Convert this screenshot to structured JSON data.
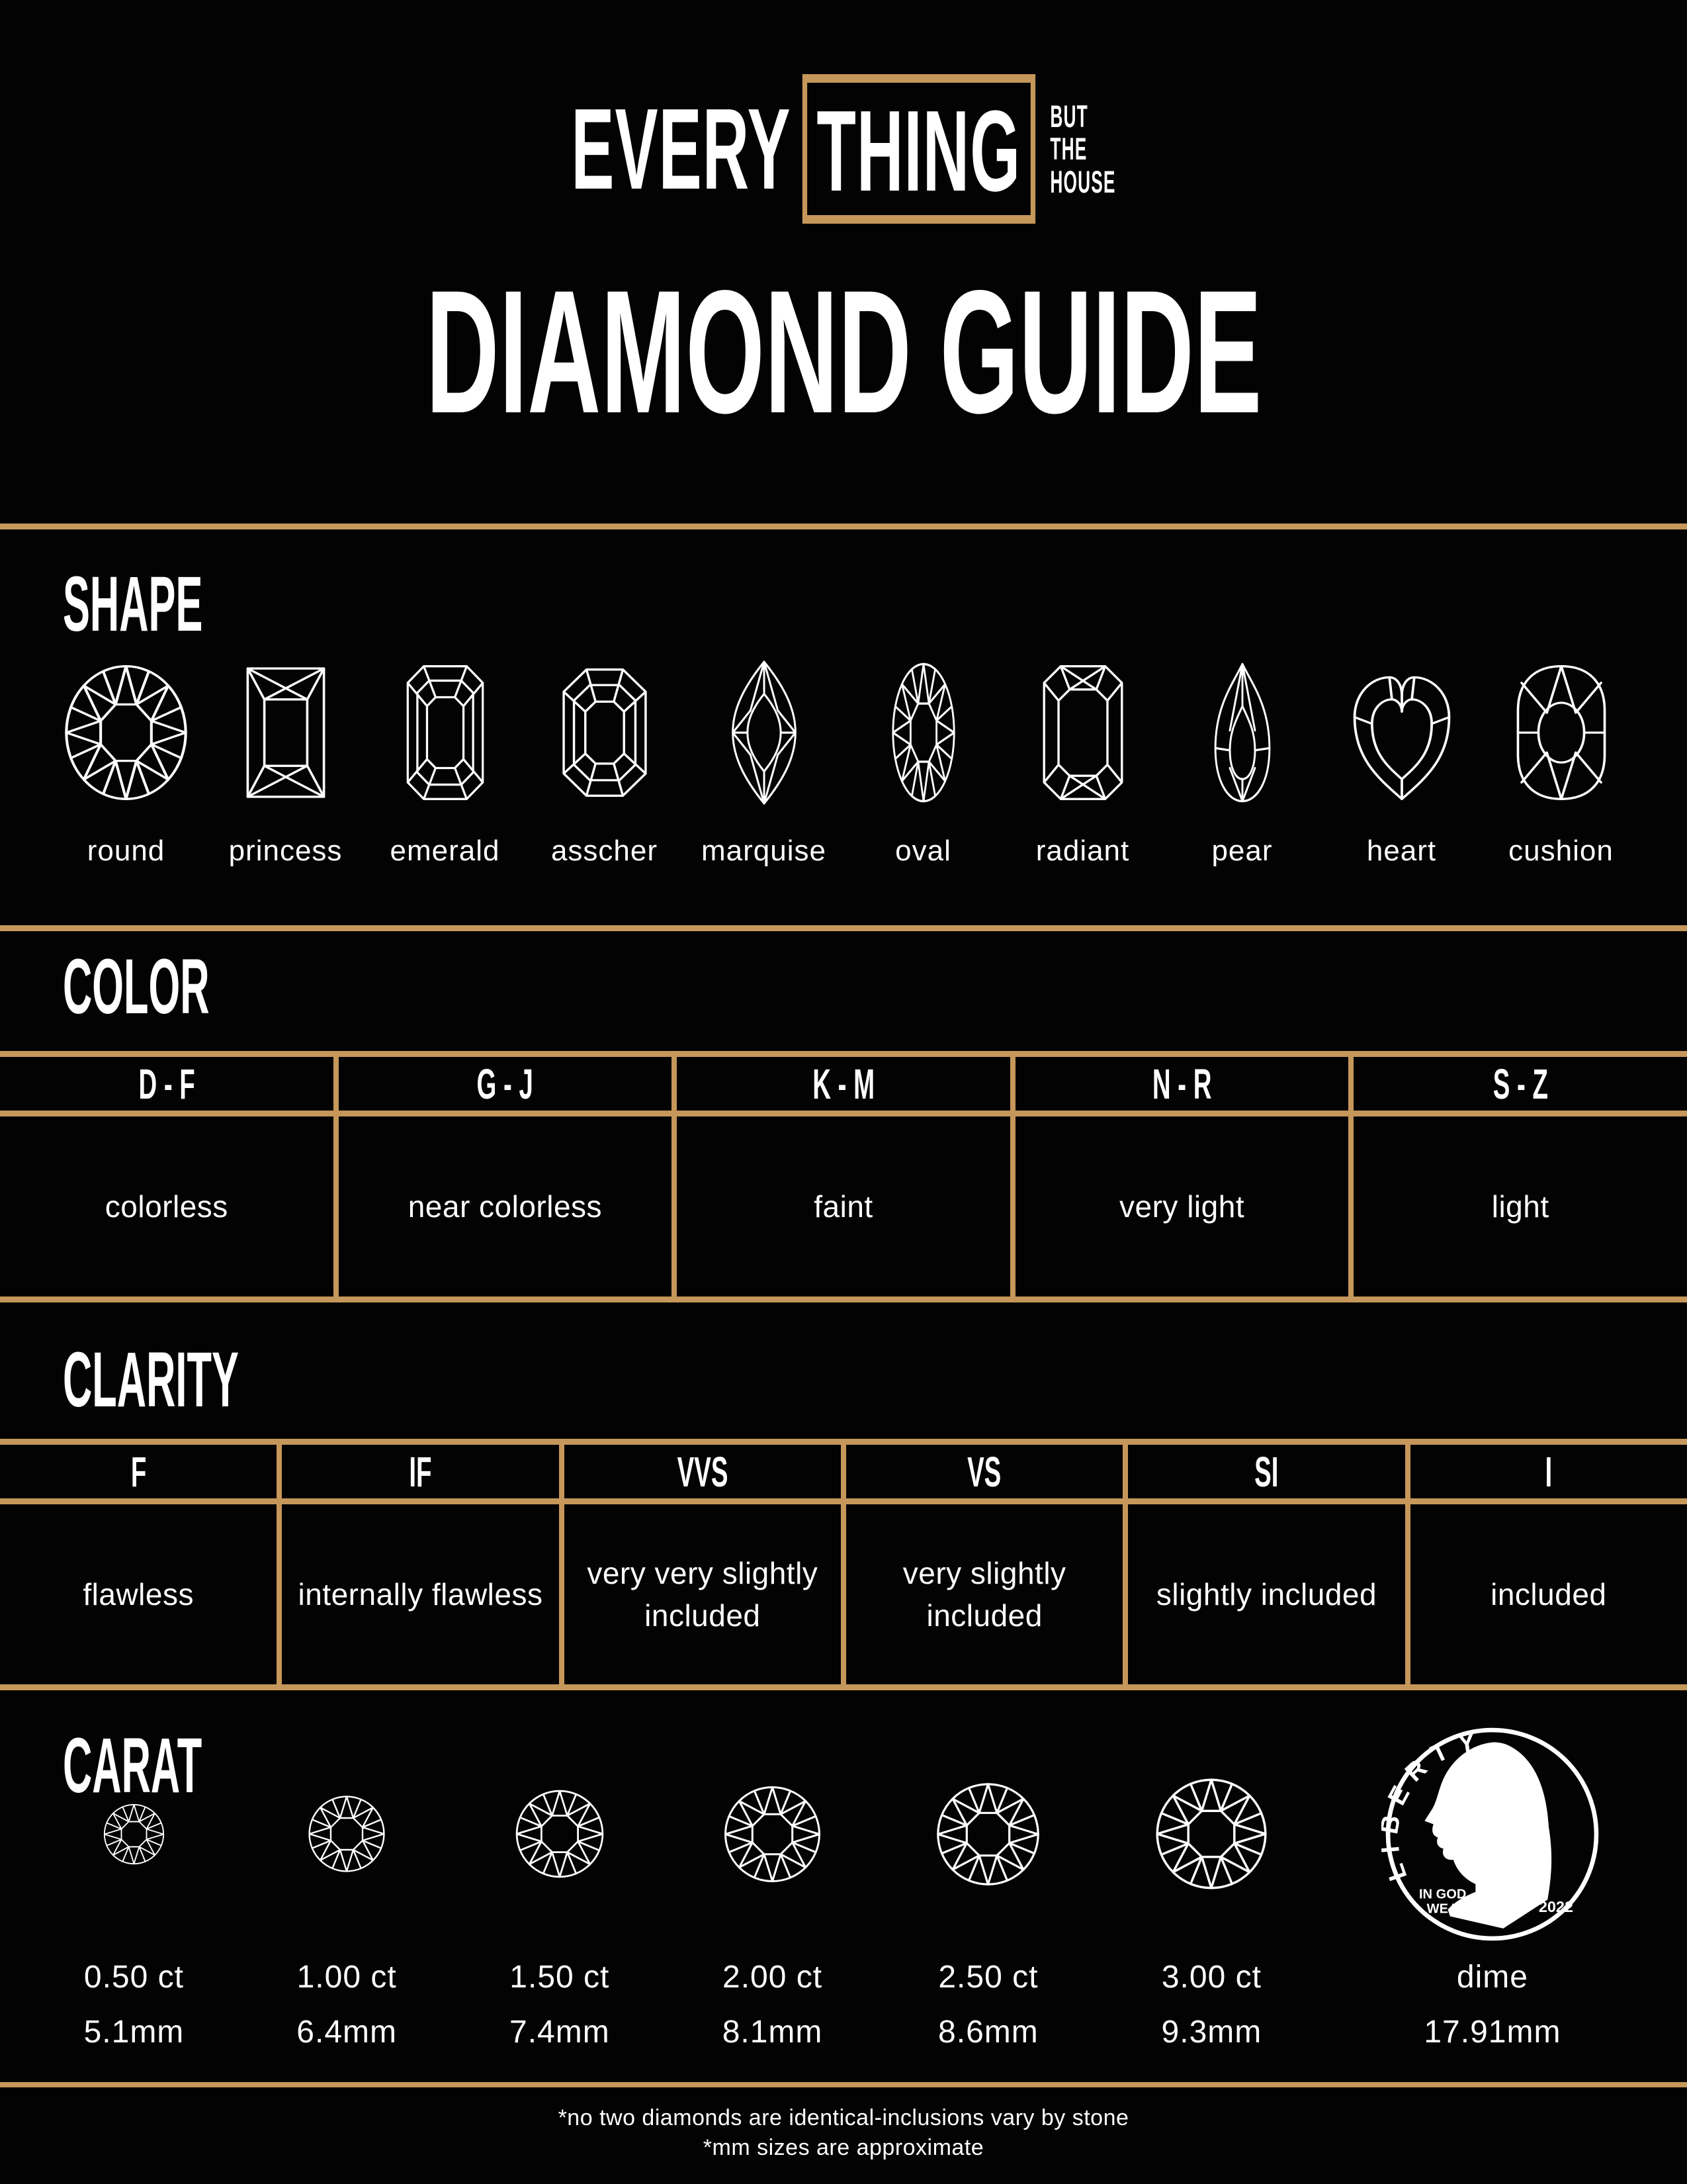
{
  "brand": {
    "word1": "EVERY",
    "word2": "THING",
    "tagline_lines": [
      "BUT",
      "THE",
      "HOUSE"
    ]
  },
  "title": "DIAMOND GUIDE",
  "shape": {
    "heading": "SHAPE",
    "labels": [
      "round",
      "princess",
      "emerald",
      "asscher",
      "marquise",
      "oval",
      "radiant",
      "pear",
      "heart",
      "cushion"
    ]
  },
  "color": {
    "heading": "COLOR",
    "columns": [
      {
        "grade": "D - F",
        "description": "colorless"
      },
      {
        "grade": "G - J",
        "description": "near colorless"
      },
      {
        "grade": "K - M",
        "description": "faint"
      },
      {
        "grade": "N - R",
        "description": "very light"
      },
      {
        "grade": "S - Z",
        "description": "light"
      }
    ]
  },
  "clarity": {
    "heading": "CLARITY",
    "columns": [
      {
        "grade": "F",
        "description": "flawless"
      },
      {
        "grade": "IF",
        "description": "internally flawless"
      },
      {
        "grade": "VVS",
        "description": "very very slightly included"
      },
      {
        "grade": "VS",
        "description": "very slightly included"
      },
      {
        "grade": "SI",
        "description": "slightly included"
      },
      {
        "grade": "I",
        "description": "included"
      }
    ]
  },
  "carat": {
    "heading": "CARAT",
    "items": [
      {
        "carat": "0.50 ct",
        "mm": "5.1mm",
        "diameter_mm": 5.1
      },
      {
        "carat": "1.00 ct",
        "mm": "6.4mm",
        "diameter_mm": 6.4
      },
      {
        "carat": "1.50 ct",
        "mm": "7.4mm",
        "diameter_mm": 7.4
      },
      {
        "carat": "2.00 ct",
        "mm": "8.1mm",
        "diameter_mm": 8.1
      },
      {
        "carat": "2.50 ct",
        "mm": "8.6mm",
        "diameter_mm": 8.6
      },
      {
        "carat": "3.00 ct",
        "mm": "9.3mm",
        "diameter_mm": 9.3
      }
    ],
    "reference": {
      "label": "dime",
      "mm": "17.91mm",
      "diameter_mm": 17.91,
      "coin": {
        "liberty": "LIBERTY",
        "motto_line1": "IN GOD",
        "motto_line2": "WE TRUST",
        "year": "2022"
      }
    }
  },
  "footnotes": {
    "line1": "*no two diamonds are identical-inclusions vary by stone",
    "line2": "*mm sizes are approximate"
  },
  "colors": {
    "background": "#030303",
    "text": "#ffffff",
    "accent_gold": "#c6975a"
  }
}
